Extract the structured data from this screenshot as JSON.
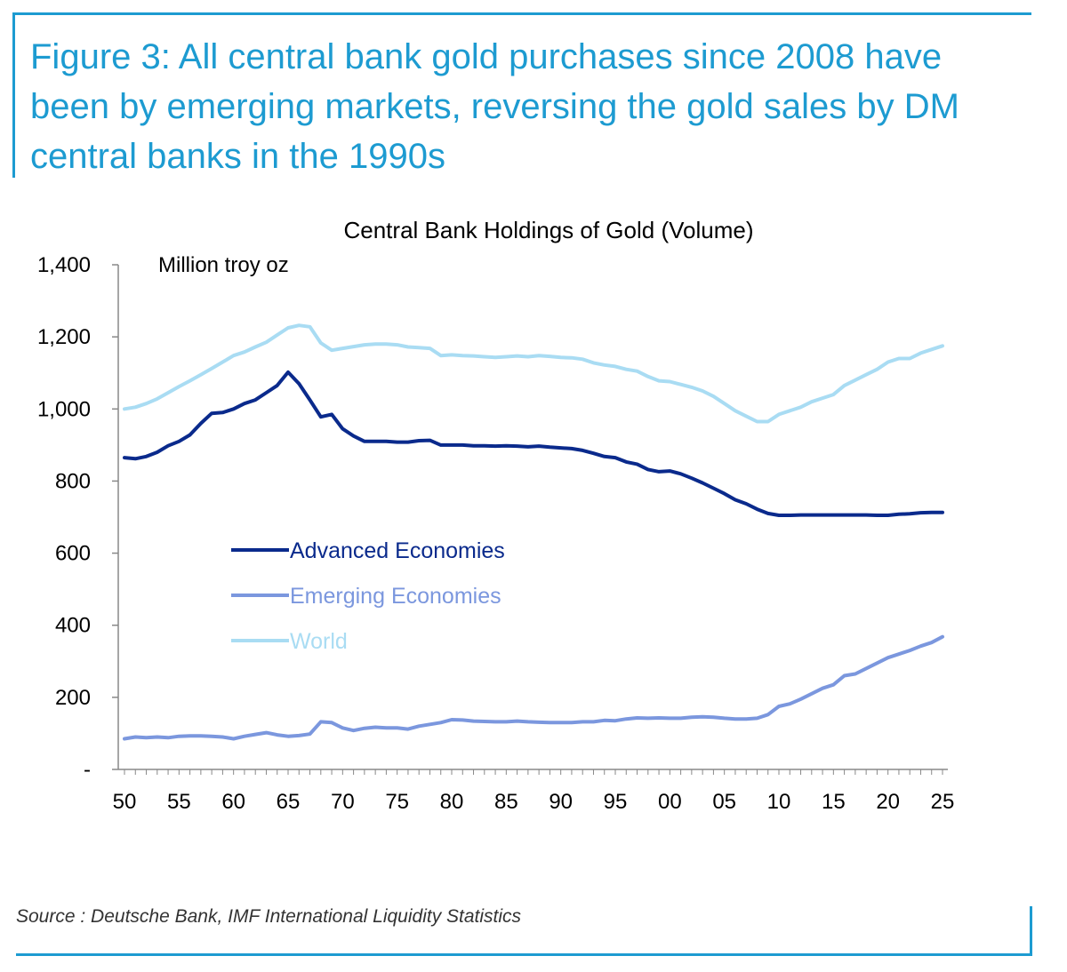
{
  "figure_title": "Figure 3: All central bank gold purchases since 2008 have been by emerging markets, reversing the gold sales by DM central banks in the 1990s",
  "source": "Source : Deutsche Bank, IMF International Liquidity Statistics",
  "chart_data": {
    "type": "line",
    "title": "Central Bank Holdings of Gold (Volume)",
    "unit_label": "Million troy oz",
    "xlabel": "",
    "ylabel": "",
    "xlim": [
      1950,
      2025
    ],
    "ylim": [
      0,
      1400
    ],
    "yticks": [
      0,
      200,
      400,
      600,
      800,
      1000,
      1200,
      1400
    ],
    "ytick_labels": [
      "-",
      "200",
      "400",
      "600",
      "800",
      "1,000",
      "1,200",
      "1,400"
    ],
    "xticks": [
      1950,
      1955,
      1960,
      1965,
      1970,
      1975,
      1980,
      1985,
      1990,
      1995,
      2000,
      2005,
      2010,
      2015,
      2020,
      2025
    ],
    "xtick_labels": [
      "50",
      "55",
      "60",
      "65",
      "70",
      "75",
      "80",
      "85",
      "90",
      "95",
      "00",
      "05",
      "10",
      "15",
      "20",
      "25"
    ],
    "grid": false,
    "legend_position": "center-left",
    "series": [
      {
        "name": "Advanced Economies",
        "color": "#0a2a8c",
        "points": [
          [
            1950,
            865
          ],
          [
            1951,
            862
          ],
          [
            1952,
            868
          ],
          [
            1953,
            880
          ],
          [
            1954,
            898
          ],
          [
            1955,
            910
          ],
          [
            1956,
            928
          ],
          [
            1957,
            960
          ],
          [
            1958,
            988
          ],
          [
            1959,
            990
          ],
          [
            1960,
            1000
          ],
          [
            1961,
            1015
          ],
          [
            1962,
            1025
          ],
          [
            1963,
            1045
          ],
          [
            1964,
            1065
          ],
          [
            1965,
            1102
          ],
          [
            1966,
            1070
          ],
          [
            1967,
            1025
          ],
          [
            1968,
            978
          ],
          [
            1969,
            985
          ],
          [
            1970,
            945
          ],
          [
            1971,
            925
          ],
          [
            1972,
            910
          ],
          [
            1973,
            910
          ],
          [
            1974,
            910
          ],
          [
            1975,
            908
          ],
          [
            1976,
            908
          ],
          [
            1977,
            912
          ],
          [
            1978,
            913
          ],
          [
            1979,
            900
          ],
          [
            1980,
            900
          ],
          [
            1981,
            900
          ],
          [
            1982,
            898
          ],
          [
            1983,
            898
          ],
          [
            1984,
            897
          ],
          [
            1985,
            898
          ],
          [
            1986,
            897
          ],
          [
            1987,
            895
          ],
          [
            1988,
            897
          ],
          [
            1989,
            894
          ],
          [
            1990,
            892
          ],
          [
            1991,
            890
          ],
          [
            1992,
            885
          ],
          [
            1993,
            877
          ],
          [
            1994,
            868
          ],
          [
            1995,
            865
          ],
          [
            1996,
            853
          ],
          [
            1997,
            847
          ],
          [
            1998,
            832
          ],
          [
            1999,
            826
          ],
          [
            2000,
            828
          ],
          [
            2001,
            820
          ],
          [
            2002,
            808
          ],
          [
            2003,
            795
          ],
          [
            2004,
            780
          ],
          [
            2005,
            765
          ],
          [
            2006,
            748
          ],
          [
            2007,
            737
          ],
          [
            2008,
            722
          ],
          [
            2009,
            710
          ],
          [
            2010,
            705
          ],
          [
            2011,
            705
          ],
          [
            2012,
            706
          ],
          [
            2013,
            706
          ],
          [
            2014,
            706
          ],
          [
            2015,
            706
          ],
          [
            2016,
            706
          ],
          [
            2017,
            706
          ],
          [
            2018,
            706
          ],
          [
            2019,
            705
          ],
          [
            2020,
            705
          ],
          [
            2021,
            708
          ],
          [
            2022,
            709
          ],
          [
            2023,
            712
          ],
          [
            2024,
            713
          ],
          [
            2025,
            713
          ]
        ]
      },
      {
        "name": "Emerging Economies",
        "color": "#7b97de",
        "points": [
          [
            1950,
            85
          ],
          [
            1951,
            90
          ],
          [
            1952,
            88
          ],
          [
            1953,
            90
          ],
          [
            1954,
            88
          ],
          [
            1955,
            92
          ],
          [
            1956,
            93
          ],
          [
            1957,
            93
          ],
          [
            1958,
            92
          ],
          [
            1959,
            90
          ],
          [
            1960,
            85
          ],
          [
            1961,
            92
          ],
          [
            1962,
            97
          ],
          [
            1963,
            102
          ],
          [
            1964,
            96
          ],
          [
            1965,
            92
          ],
          [
            1966,
            94
          ],
          [
            1967,
            98
          ],
          [
            1968,
            132
          ],
          [
            1969,
            130
          ],
          [
            1970,
            115
          ],
          [
            1971,
            108
          ],
          [
            1972,
            114
          ],
          [
            1973,
            117
          ],
          [
            1974,
            115
          ],
          [
            1975,
            115
          ],
          [
            1976,
            112
          ],
          [
            1977,
            120
          ],
          [
            1978,
            125
          ],
          [
            1979,
            130
          ],
          [
            1980,
            138
          ],
          [
            1981,
            137
          ],
          [
            1982,
            134
          ],
          [
            1983,
            133
          ],
          [
            1984,
            132
          ],
          [
            1985,
            132
          ],
          [
            1986,
            134
          ],
          [
            1987,
            132
          ],
          [
            1988,
            131
          ],
          [
            1989,
            130
          ],
          [
            1990,
            130
          ],
          [
            1991,
            130
          ],
          [
            1992,
            132
          ],
          [
            1993,
            132
          ],
          [
            1994,
            136
          ],
          [
            1995,
            135
          ],
          [
            1996,
            140
          ],
          [
            1997,
            143
          ],
          [
            1998,
            142
          ],
          [
            1999,
            143
          ],
          [
            2000,
            142
          ],
          [
            2001,
            142
          ],
          [
            2002,
            145
          ],
          [
            2003,
            146
          ],
          [
            2004,
            145
          ],
          [
            2005,
            142
          ],
          [
            2006,
            140
          ],
          [
            2007,
            140
          ],
          [
            2008,
            142
          ],
          [
            2009,
            152
          ],
          [
            2010,
            175
          ],
          [
            2011,
            182
          ],
          [
            2012,
            195
          ],
          [
            2013,
            210
          ],
          [
            2014,
            225
          ],
          [
            2015,
            235
          ],
          [
            2016,
            260
          ],
          [
            2017,
            265
          ],
          [
            2018,
            280
          ],
          [
            2019,
            295
          ],
          [
            2020,
            310
          ],
          [
            2021,
            320
          ],
          [
            2022,
            330
          ],
          [
            2023,
            342
          ],
          [
            2024,
            352
          ],
          [
            2025,
            368
          ]
        ]
      },
      {
        "name": "World",
        "color": "#a9dcf3",
        "points": [
          [
            1950,
            1000
          ],
          [
            1951,
            1005
          ],
          [
            1952,
            1015
          ],
          [
            1953,
            1028
          ],
          [
            1954,
            1045
          ],
          [
            1955,
            1062
          ],
          [
            1956,
            1078
          ],
          [
            1957,
            1095
          ],
          [
            1958,
            1112
          ],
          [
            1959,
            1130
          ],
          [
            1960,
            1148
          ],
          [
            1961,
            1158
          ],
          [
            1962,
            1172
          ],
          [
            1963,
            1185
          ],
          [
            1964,
            1205
          ],
          [
            1965,
            1225
          ],
          [
            1966,
            1232
          ],
          [
            1967,
            1228
          ],
          [
            1968,
            1183
          ],
          [
            1969,
            1163
          ],
          [
            1970,
            1168
          ],
          [
            1971,
            1173
          ],
          [
            1972,
            1178
          ],
          [
            1973,
            1180
          ],
          [
            1974,
            1180
          ],
          [
            1975,
            1178
          ],
          [
            1976,
            1172
          ],
          [
            1977,
            1170
          ],
          [
            1978,
            1168
          ],
          [
            1979,
            1148
          ],
          [
            1980,
            1150
          ],
          [
            1981,
            1148
          ],
          [
            1982,
            1147
          ],
          [
            1983,
            1145
          ],
          [
            1984,
            1143
          ],
          [
            1985,
            1145
          ],
          [
            1986,
            1147
          ],
          [
            1987,
            1145
          ],
          [
            1988,
            1148
          ],
          [
            1989,
            1146
          ],
          [
            1990,
            1143
          ],
          [
            1991,
            1142
          ],
          [
            1992,
            1138
          ],
          [
            1993,
            1128
          ],
          [
            1994,
            1122
          ],
          [
            1995,
            1118
          ],
          [
            1996,
            1110
          ],
          [
            1997,
            1105
          ],
          [
            1998,
            1090
          ],
          [
            1999,
            1078
          ],
          [
            2000,
            1076
          ],
          [
            2001,
            1068
          ],
          [
            2002,
            1060
          ],
          [
            2003,
            1050
          ],
          [
            2004,
            1035
          ],
          [
            2005,
            1015
          ],
          [
            2006,
            995
          ],
          [
            2007,
            980
          ],
          [
            2008,
            965
          ],
          [
            2009,
            965
          ],
          [
            2010,
            985
          ],
          [
            2011,
            995
          ],
          [
            2012,
            1005
          ],
          [
            2013,
            1020
          ],
          [
            2014,
            1030
          ],
          [
            2015,
            1040
          ],
          [
            2016,
            1065
          ],
          [
            2017,
            1080
          ],
          [
            2018,
            1095
          ],
          [
            2019,
            1110
          ],
          [
            2020,
            1130
          ],
          [
            2021,
            1140
          ],
          [
            2022,
            1140
          ],
          [
            2023,
            1155
          ],
          [
            2024,
            1165
          ],
          [
            2025,
            1175
          ]
        ]
      }
    ]
  }
}
